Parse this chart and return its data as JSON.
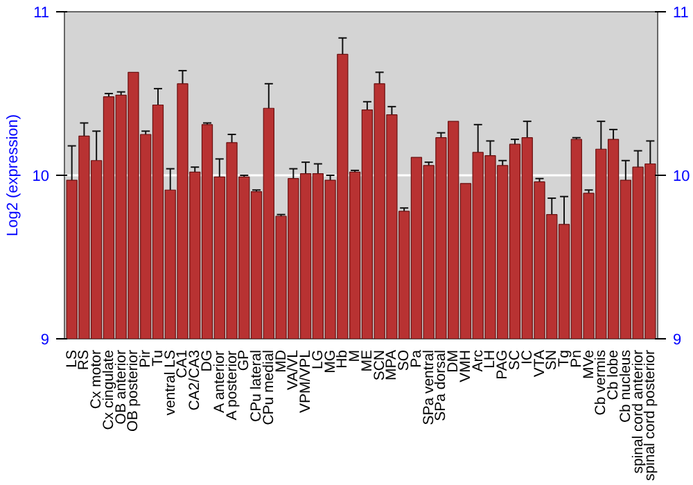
{
  "chart_data": {
    "type": "bar",
    "ylabel": "Log2 (expression)",
    "categories": [
      "LS",
      "RS",
      "Cx motor",
      "Cx cingulate",
      "OB anterior",
      "OB posterior",
      "Pir",
      "Tu",
      "ventral LS",
      "CA1",
      "CA2/CA3",
      "DG",
      "A anterior",
      "A posterior",
      "GP",
      "CPu lateral",
      "CPu medial",
      "MD",
      "VA/VL",
      "VPM/VPL",
      "LG",
      "MG",
      "Hb",
      "M",
      "ME",
      "SCN",
      "MPA",
      "SO",
      "Pa",
      "SPa ventral",
      "SPa dorsal",
      "DM",
      "VMH",
      "Arc",
      "LH",
      "PAG",
      "SC",
      "IC",
      "VTA",
      "SN",
      "Tg",
      "Pn",
      "MVe",
      "Cb vermis",
      "Cb lobe",
      "Cb nucleus",
      "spinal cord anterior",
      "spinal cord posterior"
    ],
    "values": [
      9.97,
      10.24,
      10.09,
      10.48,
      10.49,
      10.63,
      10.25,
      10.43,
      9.91,
      10.56,
      10.02,
      10.31,
      9.99,
      10.2,
      9.99,
      9.9,
      10.41,
      9.75,
      9.98,
      10.01,
      10.01,
      9.97,
      10.74,
      10.02,
      10.4,
      10.56,
      10.37,
      9.78,
      10.11,
      10.06,
      10.23,
      10.33,
      9.95,
      10.14,
      10.12,
      10.06,
      10.19,
      10.23,
      9.96,
      9.76,
      9.7,
      10.22,
      9.89,
      10.16,
      10.22,
      9.97,
      10.05,
      10.07
    ],
    "errors": [
      0.21,
      0.08,
      0.18,
      0.02,
      0.02,
      null,
      0.02,
      0.1,
      0.13,
      0.08,
      0.03,
      0.01,
      0.11,
      0.05,
      0.01,
      0.01,
      0.15,
      0.01,
      0.06,
      0.07,
      0.06,
      0.03,
      0.1,
      0.01,
      0.05,
      0.07,
      0.05,
      0.02,
      null,
      0.02,
      0.03,
      null,
      null,
      0.17,
      0.09,
      0.03,
      0.03,
      0.1,
      0.02,
      0.1,
      0.17,
      0.01,
      0.02,
      0.17,
      0.06,
      0.12,
      0.1,
      0.14
    ],
    "color": "#b83232",
    "ylim": [
      9,
      11
    ],
    "yticks": [
      9,
      10,
      11
    ],
    "y2lim": [
      9,
      11
    ],
    "y2ticks": [
      9,
      10,
      11
    ],
    "grid": "y"
  }
}
